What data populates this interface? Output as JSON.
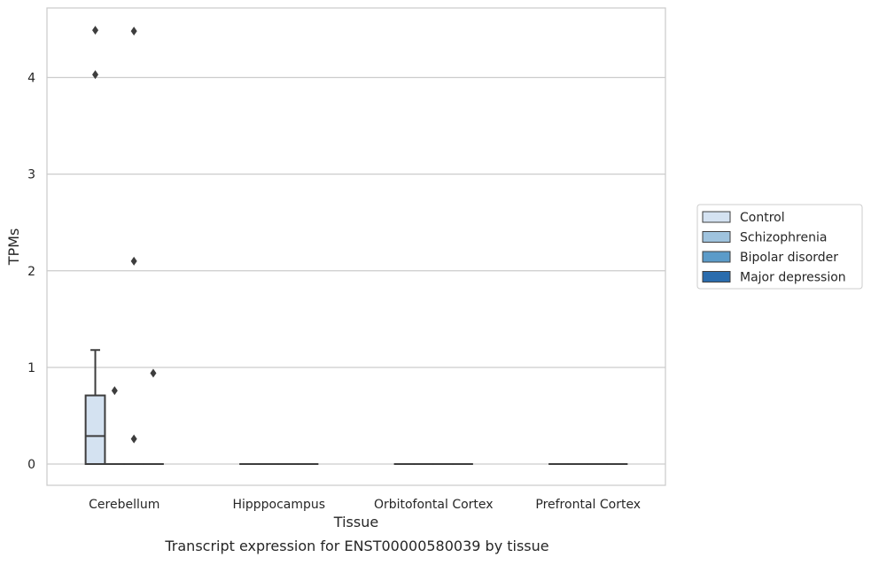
{
  "chart_data": {
    "type": "box",
    "title": "",
    "caption": "Transcript expression for ENST00000580039 by tissue",
    "xlabel": "Tissue",
    "ylabel": "TPMs",
    "ylim": [
      -0.22,
      4.72
    ],
    "yticks": [
      0,
      1,
      2,
      3,
      4
    ],
    "grid": true,
    "legend_position": "right",
    "categories": [
      "Cerebellum",
      "Hipppocampus",
      "Orbitofontal Cortex",
      "Prefrontal Cortex"
    ],
    "series": [
      {
        "name": "Control",
        "color": "#d4e2f1",
        "boxes": [
          {
            "category": "Cerebellum",
            "q1": 0,
            "median": 0.29,
            "q3": 0.71,
            "whisker_low": 0,
            "whisker_high": 1.18,
            "outliers": [
              4.03,
              4.49
            ]
          },
          {
            "category": "Hipppocampus",
            "q1": 0,
            "median": 0,
            "q3": 0,
            "whisker_low": 0,
            "whisker_high": 0,
            "outliers": []
          },
          {
            "category": "Orbitofontal Cortex",
            "q1": 0,
            "median": 0,
            "q3": 0,
            "whisker_low": 0,
            "whisker_high": 0,
            "outliers": []
          },
          {
            "category": "Prefrontal Cortex",
            "q1": 0,
            "median": 0,
            "q3": 0,
            "whisker_low": 0,
            "whisker_high": 0,
            "outliers": []
          }
        ]
      },
      {
        "name": "Schizophrenia",
        "color": "#9fc3de",
        "boxes": [
          {
            "category": "Cerebellum",
            "q1": 0,
            "median": 0,
            "q3": 0,
            "whisker_low": 0,
            "whisker_high": 0,
            "outliers": [
              0.76
            ]
          },
          {
            "category": "Hipppocampus",
            "q1": 0,
            "median": 0,
            "q3": 0,
            "whisker_low": 0,
            "whisker_high": 0,
            "outliers": []
          },
          {
            "category": "Orbitofontal Cortex",
            "q1": 0,
            "median": 0,
            "q3": 0,
            "whisker_low": 0,
            "whisker_high": 0,
            "outliers": []
          },
          {
            "category": "Prefrontal Cortex",
            "q1": 0,
            "median": 0,
            "q3": 0,
            "whisker_low": 0,
            "whisker_high": 0,
            "outliers": []
          }
        ]
      },
      {
        "name": "Bipolar disorder",
        "color": "#5b9bc9",
        "boxes": [
          {
            "category": "Cerebellum",
            "q1": 0,
            "median": 0,
            "q3": 0,
            "whisker_low": 0,
            "whisker_high": 0,
            "outliers": [
              0.26,
              2.1,
              4.48
            ]
          },
          {
            "category": "Hipppocampus",
            "q1": 0,
            "median": 0,
            "q3": 0,
            "whisker_low": 0,
            "whisker_high": 0,
            "outliers": []
          },
          {
            "category": "Orbitofontal Cortex",
            "q1": 0,
            "median": 0,
            "q3": 0,
            "whisker_low": 0,
            "whisker_high": 0,
            "outliers": []
          },
          {
            "category": "Prefrontal Cortex",
            "q1": 0,
            "median": 0,
            "q3": 0,
            "whisker_low": 0,
            "whisker_high": 0,
            "outliers": []
          }
        ]
      },
      {
        "name": "Major depression",
        "color": "#2a6cad",
        "boxes": [
          {
            "category": "Cerebellum",
            "q1": 0,
            "median": 0,
            "q3": 0,
            "whisker_low": 0,
            "whisker_high": 0,
            "outliers": [
              0.94
            ]
          },
          {
            "category": "Hipppocampus",
            "q1": 0,
            "median": 0,
            "q3": 0,
            "whisker_low": 0,
            "whisker_high": 0,
            "outliers": []
          },
          {
            "category": "Orbitofontal Cortex",
            "q1": 0,
            "median": 0,
            "q3": 0,
            "whisker_low": 0,
            "whisker_high": 0,
            "outliers": []
          },
          {
            "category": "Prefrontal Cortex",
            "q1": 0,
            "median": 0,
            "q3": 0,
            "whisker_low": 0,
            "whisker_high": 0,
            "outliers": []
          }
        ]
      }
    ]
  }
}
